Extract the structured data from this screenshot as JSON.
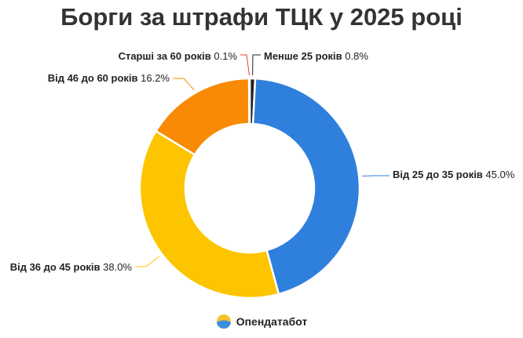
{
  "chart_data": {
    "type": "pie",
    "variant": "donut",
    "title": "Борги за штрафи ТЦК у 2025 році",
    "slices": [
      {
        "label": "Менше 25 років",
        "value": 0.8,
        "value_text": "0.8%",
        "color": "#222222"
      },
      {
        "label": "Від 25 до 35 років",
        "value": 45.0,
        "value_text": "45.0%",
        "color": "#2F80DD"
      },
      {
        "label": "Від 36 до 45 років",
        "value": 38.0,
        "value_text": "38.0%",
        "color": "#FCC500"
      },
      {
        "label": "Від 46 до 60 років",
        "value": 16.2,
        "value_text": "16.2%",
        "color": "#F98A05"
      },
      {
        "label": "Старші за 60 років",
        "value": 0.1,
        "value_text": "0.1%",
        "color": "#E04141"
      }
    ],
    "legend": "none"
  },
  "footer": {
    "brand": "Опендатабот",
    "logo_icon": "opendatabot-logo-icon"
  }
}
